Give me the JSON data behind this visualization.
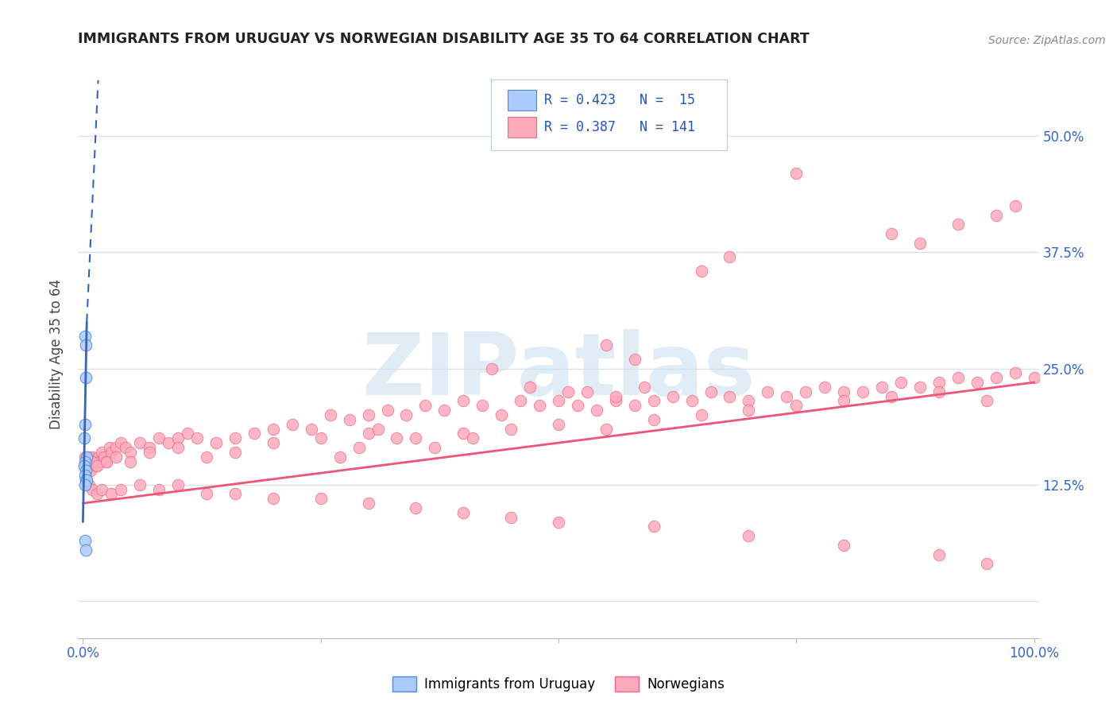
{
  "title": "IMMIGRANTS FROM URUGUAY VS NORWEGIAN DISABILITY AGE 35 TO 64 CORRELATION CHART",
  "source": "Source: ZipAtlas.com",
  "ylabel": "Disability Age 35 to 64",
  "xlim": [
    -0.005,
    1.005
  ],
  "ylim": [
    -0.04,
    0.57
  ],
  "ytick_positions": [
    0.0,
    0.125,
    0.25,
    0.375,
    0.5
  ],
  "ytick_labels": [
    "",
    "12.5%",
    "25.0%",
    "37.5%",
    "50.0%"
  ],
  "xtick_positions": [
    0.0,
    0.25,
    0.5,
    0.75,
    1.0
  ],
  "xtick_labels": [
    "0.0%",
    "",
    "",
    "",
    "100.0%"
  ],
  "color_uruguay_fill": "#aaccff",
  "color_uruguay_edge": "#5588cc",
  "color_norway_fill": "#ffaabb",
  "color_norway_edge": "#ee6688",
  "color_trend_norway": "#ee5577",
  "color_trend_uruguay": "#3366bb",
  "color_grid": "#ddddee",
  "legend_text_color": "#2255bb",
  "watermark_color": "#c8dff0",
  "title_color": "#222222",
  "source_color": "#888888",
  "tick_label_color": "#3366cc",
  "uruguay_x": [
    0.002,
    0.003,
    0.003,
    0.002,
    0.001,
    0.004,
    0.002,
    0.001,
    0.003,
    0.002,
    0.003,
    0.004,
    0.002,
    0.002,
    0.003
  ],
  "uruguay_y": [
    0.285,
    0.275,
    0.24,
    0.19,
    0.175,
    0.155,
    0.15,
    0.145,
    0.14,
    0.135,
    0.13,
    0.13,
    0.125,
    0.065,
    0.055
  ],
  "norway_x": [
    0.002,
    0.003,
    0.004,
    0.006,
    0.008,
    0.01,
    0.012,
    0.014,
    0.016,
    0.018,
    0.02,
    0.022,
    0.025,
    0.028,
    0.03,
    0.035,
    0.04,
    0.045,
    0.05,
    0.06,
    0.07,
    0.08,
    0.09,
    0.1,
    0.11,
    0.12,
    0.14,
    0.16,
    0.18,
    0.2,
    0.22,
    0.24,
    0.26,
    0.28,
    0.3,
    0.32,
    0.34,
    0.36,
    0.38,
    0.4,
    0.42,
    0.44,
    0.46,
    0.48,
    0.5,
    0.52,
    0.54,
    0.56,
    0.58,
    0.6,
    0.62,
    0.64,
    0.66,
    0.68,
    0.7,
    0.72,
    0.74,
    0.76,
    0.78,
    0.8,
    0.82,
    0.84,
    0.86,
    0.88,
    0.9,
    0.92,
    0.94,
    0.96,
    0.98,
    1.0,
    0.005,
    0.01,
    0.015,
    0.025,
    0.035,
    0.05,
    0.07,
    0.1,
    0.13,
    0.16,
    0.2,
    0.25,
    0.3,
    0.35,
    0.4,
    0.45,
    0.5,
    0.55,
    0.6,
    0.65,
    0.7,
    0.75,
    0.8,
    0.85,
    0.9,
    0.95,
    0.003,
    0.006,
    0.01,
    0.015,
    0.02,
    0.03,
    0.04,
    0.06,
    0.08,
    0.1,
    0.13,
    0.16,
    0.2,
    0.25,
    0.3,
    0.35,
    0.4,
    0.45,
    0.5,
    0.6,
    0.7,
    0.8,
    0.9,
    0.95,
    0.75,
    0.85,
    0.88,
    0.92,
    0.96,
    0.98,
    0.55,
    0.65,
    0.58,
    0.68,
    0.43,
    0.47,
    0.51,
    0.53,
    0.56,
    0.59,
    0.33,
    0.37,
    0.41,
    0.31,
    0.29,
    0.27
  ],
  "norway_y": [
    0.155,
    0.15,
    0.145,
    0.155,
    0.14,
    0.155,
    0.15,
    0.145,
    0.155,
    0.15,
    0.16,
    0.155,
    0.15,
    0.165,
    0.16,
    0.165,
    0.17,
    0.165,
    0.16,
    0.17,
    0.165,
    0.175,
    0.17,
    0.175,
    0.18,
    0.175,
    0.17,
    0.175,
    0.18,
    0.185,
    0.19,
    0.185,
    0.2,
    0.195,
    0.2,
    0.205,
    0.2,
    0.21,
    0.205,
    0.215,
    0.21,
    0.2,
    0.215,
    0.21,
    0.215,
    0.21,
    0.205,
    0.215,
    0.21,
    0.215,
    0.22,
    0.215,
    0.225,
    0.22,
    0.215,
    0.225,
    0.22,
    0.225,
    0.23,
    0.225,
    0.225,
    0.23,
    0.235,
    0.23,
    0.235,
    0.24,
    0.235,
    0.24,
    0.245,
    0.24,
    0.145,
    0.15,
    0.145,
    0.15,
    0.155,
    0.15,
    0.16,
    0.165,
    0.155,
    0.16,
    0.17,
    0.175,
    0.18,
    0.175,
    0.18,
    0.185,
    0.19,
    0.185,
    0.195,
    0.2,
    0.205,
    0.21,
    0.215,
    0.22,
    0.225,
    0.215,
    0.13,
    0.125,
    0.12,
    0.115,
    0.12,
    0.115,
    0.12,
    0.125,
    0.12,
    0.125,
    0.115,
    0.115,
    0.11,
    0.11,
    0.105,
    0.1,
    0.095,
    0.09,
    0.085,
    0.08,
    0.07,
    0.06,
    0.05,
    0.04,
    0.46,
    0.395,
    0.385,
    0.405,
    0.415,
    0.425,
    0.275,
    0.355,
    0.26,
    0.37,
    0.25,
    0.23,
    0.225,
    0.225,
    0.22,
    0.23,
    0.175,
    0.165,
    0.175,
    0.185,
    0.165,
    0.155
  ],
  "trend_norway_x0": 0.0,
  "trend_norway_y0": 0.105,
  "trend_norway_x1": 1.0,
  "trend_norway_y1": 0.235,
  "trend_uruguay_solid_x0": 0.0,
  "trend_uruguay_solid_y0": 0.085,
  "trend_uruguay_solid_x1": 0.004,
  "trend_uruguay_solid_y1": 0.3,
  "trend_uruguay_dash_x0": 0.004,
  "trend_uruguay_dash_y0": 0.3,
  "trend_uruguay_dash_x1": 0.016,
  "trend_uruguay_dash_y1": 0.56
}
